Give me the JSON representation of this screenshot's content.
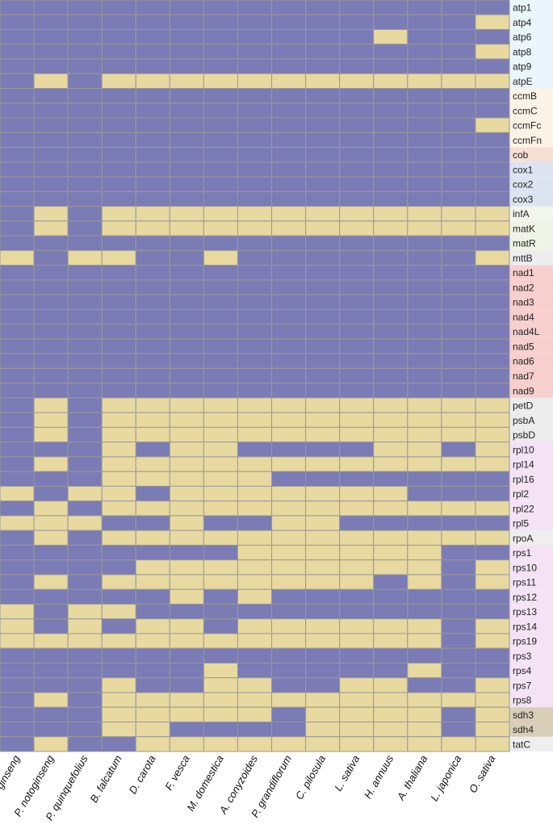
{
  "colors": {
    "present": "#E8D9A0",
    "absent": "#7B7BB5",
    "grid": "#999999",
    "groups": {
      "atp": "#EAF6FB",
      "ccm": "#FCF3E6",
      "cob": "#F6E0D6",
      "cox": "#DCE4F2",
      "inf": "#F2F6EC",
      "matK": "#EEF4E6",
      "matR": "#EEF4E6",
      "mtt": "#EDEDED",
      "nad": "#F7CFCF",
      "psb": "#ECECEC",
      "rpl": "#F5E3F5",
      "rpo": "#EEEEEE",
      "rps": "#F5E3F5",
      "sdh": "#D9CEB8",
      "tat": "#EEEEEE"
    }
  },
  "chart_data": {
    "type": "heatmap",
    "title": "",
    "xlabel": "",
    "ylabel": "",
    "value_meaning": {
      "0": "absent",
      "1": "present"
    },
    "species": [
      "P. ginseng",
      "P. notoginseng",
      "P. quinquefolius",
      "B. falcatum",
      "D. carota",
      "F. vesca",
      "M. domestica",
      "A. conyzoides",
      "P. grandiflorum",
      "C. pilosula",
      "L. sativa",
      "H. annuus",
      "A. thaliana",
      "L. japonica",
      "O. sativa"
    ],
    "genes": [
      {
        "name": "atp1",
        "group": "atp",
        "values": [
          0,
          0,
          0,
          0,
          0,
          0,
          0,
          0,
          0,
          0,
          0,
          0,
          0,
          0,
          0
        ]
      },
      {
        "name": "atp4",
        "group": "atp",
        "values": [
          0,
          0,
          0,
          0,
          0,
          0,
          0,
          0,
          0,
          0,
          0,
          0,
          0,
          0,
          1
        ]
      },
      {
        "name": "atp6",
        "group": "atp",
        "values": [
          0,
          0,
          0,
          0,
          0,
          0,
          0,
          0,
          0,
          0,
          0,
          1,
          0,
          0,
          0
        ]
      },
      {
        "name": "atp8",
        "group": "atp",
        "values": [
          0,
          0,
          0,
          0,
          0,
          0,
          0,
          0,
          0,
          0,
          0,
          0,
          0,
          0,
          1
        ]
      },
      {
        "name": "atp9",
        "group": "atp",
        "values": [
          0,
          0,
          0,
          0,
          0,
          0,
          0,
          0,
          0,
          0,
          0,
          0,
          0,
          0,
          0
        ]
      },
      {
        "name": "atpE",
        "group": "atp",
        "values": [
          0,
          1,
          0,
          1,
          1,
          1,
          1,
          1,
          1,
          1,
          1,
          1,
          1,
          1,
          1
        ]
      },
      {
        "name": "ccmB",
        "group": "ccm",
        "values": [
          0,
          0,
          0,
          0,
          0,
          0,
          0,
          0,
          0,
          0,
          0,
          0,
          0,
          0,
          0
        ]
      },
      {
        "name": "ccmC",
        "group": "ccm",
        "values": [
          0,
          0,
          0,
          0,
          0,
          0,
          0,
          0,
          0,
          0,
          0,
          0,
          0,
          0,
          0
        ]
      },
      {
        "name": "ccmFc",
        "group": "ccm",
        "values": [
          0,
          0,
          0,
          0,
          0,
          0,
          0,
          0,
          0,
          0,
          0,
          0,
          0,
          0,
          1
        ]
      },
      {
        "name": "ccmFn",
        "group": "ccm",
        "values": [
          0,
          0,
          0,
          0,
          0,
          0,
          0,
          0,
          0,
          0,
          0,
          0,
          0,
          0,
          0
        ]
      },
      {
        "name": "cob",
        "group": "cob",
        "values": [
          0,
          0,
          0,
          0,
          0,
          0,
          0,
          0,
          0,
          0,
          0,
          0,
          0,
          0,
          0
        ]
      },
      {
        "name": "cox1",
        "group": "cox",
        "values": [
          0,
          0,
          0,
          0,
          0,
          0,
          0,
          0,
          0,
          0,
          0,
          0,
          0,
          0,
          0
        ]
      },
      {
        "name": "cox2",
        "group": "cox",
        "values": [
          0,
          0,
          0,
          0,
          0,
          0,
          0,
          0,
          0,
          0,
          0,
          0,
          0,
          0,
          0
        ]
      },
      {
        "name": "cox3",
        "group": "cox",
        "values": [
          0,
          0,
          0,
          0,
          0,
          0,
          0,
          0,
          0,
          0,
          0,
          0,
          0,
          0,
          0
        ]
      },
      {
        "name": "infA",
        "group": "inf",
        "values": [
          0,
          1,
          0,
          1,
          1,
          1,
          1,
          1,
          1,
          1,
          1,
          1,
          1,
          1,
          1
        ]
      },
      {
        "name": "matK",
        "group": "matK",
        "values": [
          0,
          1,
          0,
          1,
          1,
          1,
          1,
          1,
          1,
          1,
          1,
          1,
          1,
          1,
          1
        ]
      },
      {
        "name": "matR",
        "group": "matR",
        "values": [
          0,
          0,
          0,
          0,
          0,
          0,
          0,
          0,
          0,
          0,
          0,
          0,
          0,
          0,
          0
        ]
      },
      {
        "name": "mttB",
        "group": "mtt",
        "values": [
          1,
          0,
          1,
          1,
          0,
          0,
          1,
          0,
          0,
          0,
          0,
          0,
          0,
          0,
          1
        ]
      },
      {
        "name": "nad1",
        "group": "nad",
        "values": [
          0,
          0,
          0,
          0,
          0,
          0,
          0,
          0,
          0,
          0,
          0,
          0,
          0,
          0,
          0
        ]
      },
      {
        "name": "nad2",
        "group": "nad",
        "values": [
          0,
          0,
          0,
          0,
          0,
          0,
          0,
          0,
          0,
          0,
          0,
          0,
          0,
          0,
          0
        ]
      },
      {
        "name": "nad3",
        "group": "nad",
        "values": [
          0,
          0,
          0,
          0,
          0,
          0,
          0,
          0,
          0,
          0,
          0,
          0,
          0,
          0,
          0
        ]
      },
      {
        "name": "nad4",
        "group": "nad",
        "values": [
          0,
          0,
          0,
          0,
          0,
          0,
          0,
          0,
          0,
          0,
          0,
          0,
          0,
          0,
          0
        ]
      },
      {
        "name": "nad4L",
        "group": "nad",
        "values": [
          0,
          0,
          0,
          0,
          0,
          0,
          0,
          0,
          0,
          0,
          0,
          0,
          0,
          0,
          0
        ]
      },
      {
        "name": "nad5",
        "group": "nad",
        "values": [
          0,
          0,
          0,
          0,
          0,
          0,
          0,
          0,
          0,
          0,
          0,
          0,
          0,
          0,
          0
        ]
      },
      {
        "name": "nad6",
        "group": "nad",
        "values": [
          0,
          0,
          0,
          0,
          0,
          0,
          0,
          0,
          0,
          0,
          0,
          0,
          0,
          0,
          0
        ]
      },
      {
        "name": "nad7",
        "group": "nad",
        "values": [
          0,
          0,
          0,
          0,
          0,
          0,
          0,
          0,
          0,
          0,
          0,
          0,
          0,
          0,
          0
        ]
      },
      {
        "name": "nad9",
        "group": "nad",
        "values": [
          0,
          0,
          0,
          0,
          0,
          0,
          0,
          0,
          0,
          0,
          0,
          0,
          0,
          0,
          0
        ]
      },
      {
        "name": "petD",
        "group": "psb",
        "values": [
          0,
          1,
          0,
          1,
          1,
          1,
          1,
          1,
          1,
          1,
          1,
          1,
          1,
          1,
          1
        ]
      },
      {
        "name": "psbA",
        "group": "psb",
        "values": [
          0,
          1,
          0,
          1,
          1,
          1,
          1,
          1,
          1,
          1,
          1,
          1,
          1,
          1,
          1
        ]
      },
      {
        "name": "psbD",
        "group": "psb",
        "values": [
          0,
          1,
          0,
          1,
          1,
          1,
          1,
          1,
          1,
          1,
          1,
          1,
          1,
          1,
          1
        ]
      },
      {
        "name": "rpl10",
        "group": "rpl",
        "values": [
          0,
          0,
          0,
          1,
          0,
          1,
          1,
          0,
          0,
          0,
          0,
          1,
          1,
          0,
          1
        ]
      },
      {
        "name": "rpl14",
        "group": "rpl",
        "values": [
          0,
          1,
          0,
          1,
          1,
          1,
          1,
          1,
          1,
          1,
          1,
          1,
          1,
          1,
          1
        ]
      },
      {
        "name": "rpl16",
        "group": "rpl",
        "values": [
          0,
          0,
          0,
          1,
          1,
          1,
          1,
          1,
          0,
          0,
          0,
          0,
          0,
          0,
          0
        ]
      },
      {
        "name": "rpl2",
        "group": "rpl",
        "values": [
          1,
          0,
          1,
          1,
          0,
          1,
          1,
          1,
          1,
          1,
          1,
          1,
          0,
          0,
          0
        ]
      },
      {
        "name": "rpl22",
        "group": "rpl",
        "values": [
          0,
          1,
          0,
          1,
          1,
          1,
          1,
          1,
          1,
          1,
          1,
          1,
          1,
          1,
          1
        ]
      },
      {
        "name": "rpl5",
        "group": "rpl",
        "values": [
          1,
          1,
          1,
          0,
          0,
          1,
          0,
          0,
          1,
          1,
          0,
          0,
          0,
          0,
          0
        ]
      },
      {
        "name": "rpoA",
        "group": "rpo",
        "values": [
          0,
          1,
          0,
          1,
          1,
          1,
          1,
          1,
          1,
          1,
          1,
          1,
          1,
          1,
          1
        ]
      },
      {
        "name": "rps1",
        "group": "rps",
        "values": [
          0,
          0,
          0,
          0,
          0,
          0,
          0,
          1,
          1,
          1,
          1,
          1,
          1,
          0,
          0
        ]
      },
      {
        "name": "rps10",
        "group": "rps",
        "values": [
          0,
          0,
          0,
          0,
          1,
          1,
          1,
          1,
          1,
          1,
          1,
          1,
          1,
          0,
          1
        ]
      },
      {
        "name": "rps11",
        "group": "rps",
        "values": [
          0,
          1,
          0,
          1,
          1,
          1,
          1,
          1,
          1,
          1,
          1,
          0,
          1,
          0,
          1
        ]
      },
      {
        "name": "rps12",
        "group": "rps",
        "values": [
          0,
          0,
          0,
          0,
          0,
          1,
          0,
          1,
          0,
          0,
          0,
          0,
          0,
          0,
          0
        ]
      },
      {
        "name": "rps13",
        "group": "rps",
        "values": [
          1,
          0,
          1,
          1,
          0,
          0,
          0,
          0,
          0,
          0,
          0,
          0,
          0,
          0,
          0
        ]
      },
      {
        "name": "rps14",
        "group": "rps",
        "values": [
          1,
          0,
          1,
          0,
          1,
          1,
          0,
          1,
          1,
          1,
          1,
          1,
          1,
          0,
          1
        ]
      },
      {
        "name": "rps19",
        "group": "rps",
        "values": [
          1,
          1,
          1,
          1,
          1,
          1,
          1,
          1,
          1,
          1,
          1,
          1,
          1,
          0,
          1
        ]
      },
      {
        "name": "rps3",
        "group": "rps",
        "values": [
          0,
          0,
          0,
          0,
          0,
          0,
          0,
          0,
          0,
          0,
          0,
          0,
          0,
          0,
          0
        ]
      },
      {
        "name": "rps4",
        "group": "rps",
        "values": [
          0,
          0,
          0,
          0,
          0,
          0,
          1,
          0,
          0,
          0,
          0,
          0,
          1,
          0,
          0
        ]
      },
      {
        "name": "rps7",
        "group": "rps",
        "values": [
          0,
          0,
          0,
          1,
          0,
          0,
          1,
          1,
          0,
          0,
          1,
          1,
          0,
          0,
          1
        ]
      },
      {
        "name": "rps8",
        "group": "rps",
        "values": [
          0,
          1,
          0,
          1,
          1,
          1,
          1,
          1,
          1,
          1,
          1,
          1,
          1,
          1,
          1
        ]
      },
      {
        "name": "sdh3",
        "group": "sdh",
        "values": [
          0,
          0,
          0,
          1,
          1,
          1,
          1,
          1,
          0,
          1,
          1,
          1,
          1,
          0,
          1
        ]
      },
      {
        "name": "sdh4",
        "group": "sdh",
        "values": [
          0,
          0,
          0,
          1,
          1,
          0,
          0,
          0,
          0,
          1,
          1,
          1,
          1,
          0,
          1
        ]
      },
      {
        "name": "tatC",
        "group": "tat",
        "values": [
          0,
          1,
          0,
          0,
          1,
          1,
          1,
          1,
          1,
          1,
          1,
          1,
          1,
          1,
          1
        ]
      }
    ]
  }
}
